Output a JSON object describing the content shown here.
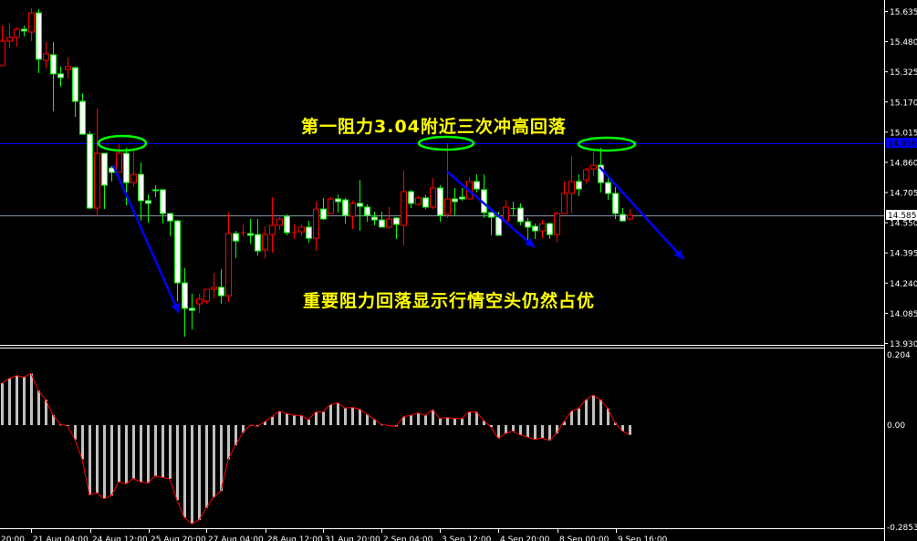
{
  "colors": {
    "background": "#000000",
    "bull_candle": "#ff0000",
    "bear_candle": "#00ff00",
    "bear_fill": "#ffffff",
    "resistance_line": "#0000ff",
    "bid_line": "#8899aa",
    "histogram": "#c0c0c0",
    "signal_line": "#ff0000",
    "ellipse": "#00ff00",
    "arrow": "#0000ff",
    "annotation": "#ffff00"
  },
  "price_axis": {
    "labels": [
      "15.635",
      "15.480",
      "15.325",
      "15.170",
      "15.015",
      "14.860",
      "14.705",
      "14.550",
      "14.395",
      "14.240",
      "14.085",
      "13.930"
    ],
    "range": [
      13.93,
      15.635
    ],
    "resistance_price": "14.956",
    "current_price": "14.585"
  },
  "oscillator_axis": {
    "labels": [
      "0.204",
      "0.00",
      "-0.2853"
    ],
    "range": [
      -0.2853,
      0.204
    ]
  },
  "time_axis": {
    "labels": [
      "20:00",
      "21 Aug 04:00",
      "24 Aug 12:00",
      "25 Aug 20:00",
      "27 Aug 04:00",
      "28 Aug 12:00",
      "31 Aug 20:00",
      "2 Sep 04:00",
      "3 Sep 12:00",
      "4 Sep 20:00",
      "8 Sep 00:00",
      "9 Sep 16:00"
    ]
  },
  "annotations": {
    "top_text": "第一阻力3.04附近三次冲高回落",
    "bottom_text": "重要阻力回落显示行情空头仍然占优"
  },
  "chart_data": [
    {
      "type": "candlestick",
      "columns": [
        "open",
        "high",
        "low",
        "close"
      ],
      "ylim": [
        13.93,
        15.635
      ],
      "ohlc": [
        [
          15.354,
          15.56,
          15.354,
          15.48
        ],
        [
          15.48,
          15.574,
          15.443,
          15.499
        ],
        [
          15.499,
          15.55,
          15.452,
          15.541
        ],
        [
          15.541,
          15.56,
          15.504,
          15.532
        ],
        [
          15.527,
          15.649,
          15.48,
          15.625
        ],
        [
          15.625,
          15.644,
          15.316,
          15.387
        ],
        [
          15.382,
          15.476,
          15.34,
          15.415
        ],
        [
          15.41,
          15.476,
          15.12,
          15.312
        ],
        [
          15.312,
          15.349,
          15.246,
          15.293
        ],
        [
          15.335,
          15.396,
          15.288,
          15.349
        ],
        [
          15.344,
          15.349,
          15.091,
          15.171
        ],
        [
          15.171,
          15.213,
          15.002,
          15.002
        ],
        [
          15.002,
          15.016,
          14.618,
          14.623
        ],
        [
          14.623,
          15.134,
          14.581,
          14.904
        ],
        [
          14.904,
          14.904,
          14.618,
          14.74
        ],
        [
          14.829,
          14.839,
          14.759,
          14.806
        ],
        [
          14.806,
          14.951,
          14.806,
          14.904
        ],
        [
          14.904,
          14.932,
          14.637,
          14.754
        ],
        [
          14.754,
          14.932,
          14.731,
          14.796
        ],
        [
          14.796,
          14.857,
          14.557,
          14.661
        ],
        [
          14.661,
          14.693,
          14.548,
          14.647
        ],
        [
          14.717,
          14.74,
          14.679,
          14.712
        ],
        [
          14.717,
          14.717,
          14.543,
          14.595
        ],
        [
          14.595,
          14.595,
          14.478,
          14.557
        ],
        [
          14.557,
          14.562,
          14.145,
          14.239
        ],
        [
          14.239,
          14.314,
          13.963,
          14.108
        ],
        [
          14.108,
          14.183,
          13.999,
          14.098
        ],
        [
          14.131,
          14.183,
          14.084,
          14.155
        ],
        [
          14.145,
          14.206,
          14.131,
          14.206
        ],
        [
          14.206,
          14.29,
          14.159,
          14.216
        ],
        [
          14.216,
          14.309,
          14.131,
          14.173
        ],
        [
          14.173,
          14.6,
          14.141,
          14.492
        ],
        [
          14.492,
          14.506,
          14.365,
          14.454
        ],
        [
          14.497,
          14.539,
          14.478,
          14.499
        ],
        [
          14.492,
          14.567,
          14.44,
          14.483
        ],
        [
          14.487,
          14.567,
          14.379,
          14.403
        ],
        [
          14.408,
          14.529,
          14.365,
          14.487
        ],
        [
          14.487,
          14.679,
          14.394,
          14.534
        ],
        [
          14.534,
          14.576,
          14.511,
          14.567
        ],
        [
          14.581,
          14.59,
          14.483,
          14.497
        ],
        [
          14.497,
          14.539,
          14.464,
          14.499
        ],
        [
          14.501,
          14.539,
          14.483,
          14.525
        ],
        [
          14.525,
          14.557,
          14.445,
          14.468
        ],
        [
          14.468,
          14.656,
          14.403,
          14.618
        ],
        [
          14.618,
          14.675,
          14.562,
          14.567
        ],
        [
          14.595,
          14.679,
          14.595,
          14.67
        ],
        [
          14.67,
          14.693,
          14.6,
          14.656
        ],
        [
          14.665,
          14.675,
          14.543,
          14.586
        ],
        [
          14.581,
          14.661,
          14.515,
          14.647
        ],
        [
          14.647,
          14.768,
          14.506,
          14.632
        ],
        [
          14.628,
          14.642,
          14.553,
          14.586
        ],
        [
          14.576,
          14.604,
          14.534,
          14.562
        ],
        [
          14.562,
          14.604,
          14.525,
          14.525
        ],
        [
          14.525,
          14.628,
          14.515,
          14.567
        ],
        [
          14.572,
          14.576,
          14.464,
          14.539
        ],
        [
          14.534,
          14.815,
          14.431,
          14.707
        ],
        [
          14.707,
          14.717,
          14.623,
          14.647
        ],
        [
          14.642,
          14.684,
          14.637,
          14.675
        ],
        [
          14.675,
          14.689,
          14.618,
          14.628
        ],
        [
          14.628,
          14.778,
          14.618,
          14.726
        ],
        [
          14.726,
          14.74,
          14.553,
          14.586
        ],
        [
          14.59,
          14.956,
          14.572,
          14.67
        ],
        [
          14.67,
          14.726,
          14.586,
          14.656
        ],
        [
          14.679,
          14.726,
          14.661,
          14.67
        ],
        [
          14.67,
          14.782,
          14.67,
          14.759
        ],
        [
          14.759,
          14.796,
          14.703,
          14.721
        ],
        [
          14.717,
          14.796,
          14.572,
          14.6
        ],
        [
          14.6,
          14.604,
          14.483,
          14.576
        ],
        [
          14.576,
          14.604,
          14.483,
          14.483
        ],
        [
          14.557,
          14.665,
          14.557,
          14.628
        ],
        [
          14.623,
          14.656,
          14.581,
          14.62
        ],
        [
          14.623,
          14.647,
          14.534,
          14.553
        ],
        [
          14.553,
          14.572,
          14.459,
          14.525
        ],
        [
          14.529,
          14.543,
          14.464,
          14.506
        ],
        [
          14.506,
          14.562,
          14.468,
          14.543
        ],
        [
          14.543,
          14.548,
          14.464,
          14.487
        ],
        [
          14.487,
          14.604,
          14.445,
          14.595
        ],
        [
          14.595,
          14.759,
          14.595,
          14.698
        ],
        [
          14.698,
          14.89,
          14.595,
          14.759
        ],
        [
          14.759,
          14.796,
          14.684,
          14.721
        ],
        [
          14.768,
          14.829,
          14.75,
          14.82
        ],
        [
          14.824,
          14.928,
          14.787,
          14.843
        ],
        [
          14.843,
          14.932,
          14.703,
          14.754
        ],
        [
          14.754,
          14.787,
          14.665,
          14.698
        ],
        [
          14.698,
          14.731,
          14.567,
          14.595
        ],
        [
          14.59,
          14.623,
          14.557,
          14.557
        ],
        [
          14.567,
          14.618,
          14.562,
          14.586
        ]
      ],
      "horizontal_lines": [
        14.956,
        14.585
      ]
    },
    {
      "type": "bar",
      "ylim": [
        -0.2853,
        0.204
      ],
      "values": [
        0.12,
        0.134,
        0.142,
        0.138,
        0.148,
        0.099,
        0.073,
        0.029,
        0.002,
        -0.002,
        -0.041,
        -0.098,
        -0.2,
        -0.194,
        -0.211,
        -0.202,
        -0.163,
        -0.168,
        -0.153,
        -0.163,
        -0.166,
        -0.146,
        -0.15,
        -0.154,
        -0.215,
        -0.265,
        -0.283,
        -0.272,
        -0.237,
        -0.207,
        -0.189,
        -0.098,
        -0.058,
        -0.022,
        0.0,
        -0.004,
        0.01,
        0.024,
        0.04,
        0.033,
        0.028,
        0.028,
        0.016,
        0.038,
        0.038,
        0.059,
        0.064,
        0.049,
        0.051,
        0.046,
        0.031,
        0.017,
        0.002,
        -0.001,
        -0.004,
        0.024,
        0.028,
        0.035,
        0.028,
        0.044,
        0.019,
        0.022,
        0.019,
        0.019,
        0.038,
        0.038,
        0.013,
        -0.006,
        -0.038,
        -0.024,
        -0.017,
        -0.028,
        -0.034,
        -0.041,
        -0.037,
        -0.044,
        -0.024,
        0.01,
        0.04,
        0.048,
        0.073,
        0.086,
        0.073,
        0.048,
        0.007,
        -0.017,
        -0.028
      ]
    }
  ]
}
